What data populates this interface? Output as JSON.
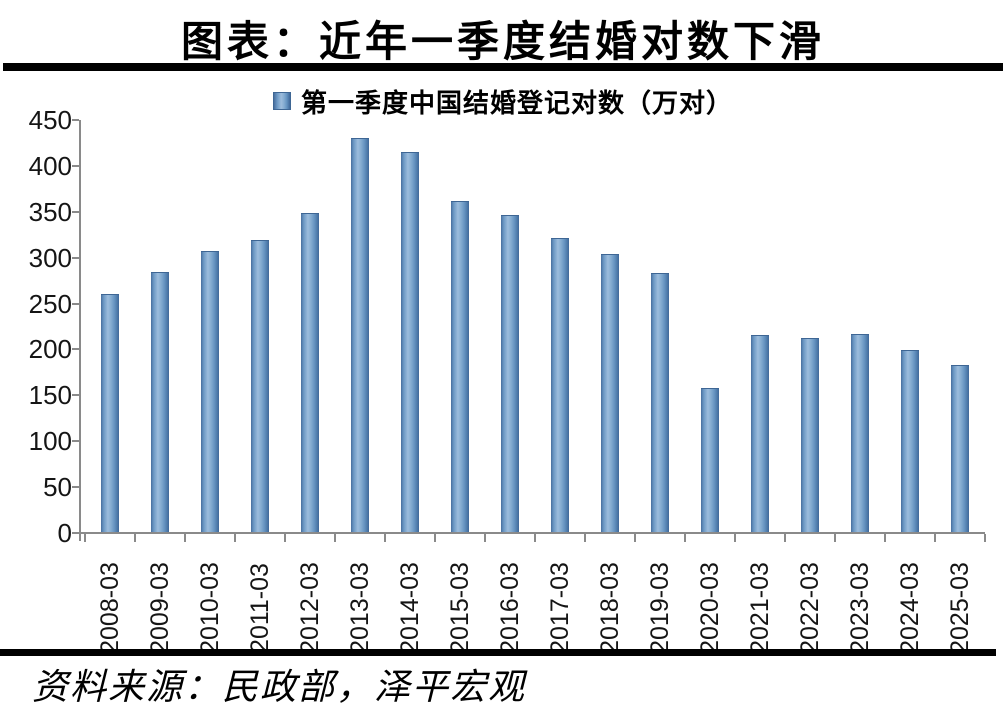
{
  "title": "图表：近年一季度结婚对数下滑",
  "legend": {
    "label": "第一季度中国结婚登记对数（万对）"
  },
  "source": "资料来源：民政部，泽平宏观",
  "colors": {
    "divider_rule": "#000000",
    "axis": "#8a8a8a",
    "bar_edge": "#40689a",
    "bar_light": "#9cbcdc",
    "bar_mid": "#6593c1",
    "text": "#151515"
  },
  "chart_data": {
    "type": "bar",
    "title": "图表：近年一季度结婚对数下滑",
    "series_name": "第一季度中国结婚登记对数（万对）",
    "categories": [
      "2008-03",
      "2009-03",
      "2010-03",
      "2011-03",
      "2012-03",
      "2013-03",
      "2014-03",
      "2015-03",
      "2016-03",
      "2017-03",
      "2018-03",
      "2019-03",
      "2020-03",
      "2021-03",
      "2022-03",
      "2023-03",
      "2024-03",
      "2025-03"
    ],
    "values": [
      257.9,
      282.4,
      305.2,
      317.6,
      346.8,
      428.2,
      413.0,
      360.0,
      344.8,
      319.8,
      301.7,
      281.5,
      155.7,
      213.2,
      210.7,
      214.7,
      196.9,
      181.0
    ],
    "xlabel": "",
    "ylabel": "",
    "ylim": [
      0,
      450
    ],
    "y_ticks": [
      0,
      50,
      100,
      150,
      200,
      250,
      300,
      350,
      400,
      450
    ],
    "grid": false,
    "legend_position": "top",
    "x_label_rotation_deg": -90,
    "source_note": "资料来源：民政部，泽平宏观"
  }
}
